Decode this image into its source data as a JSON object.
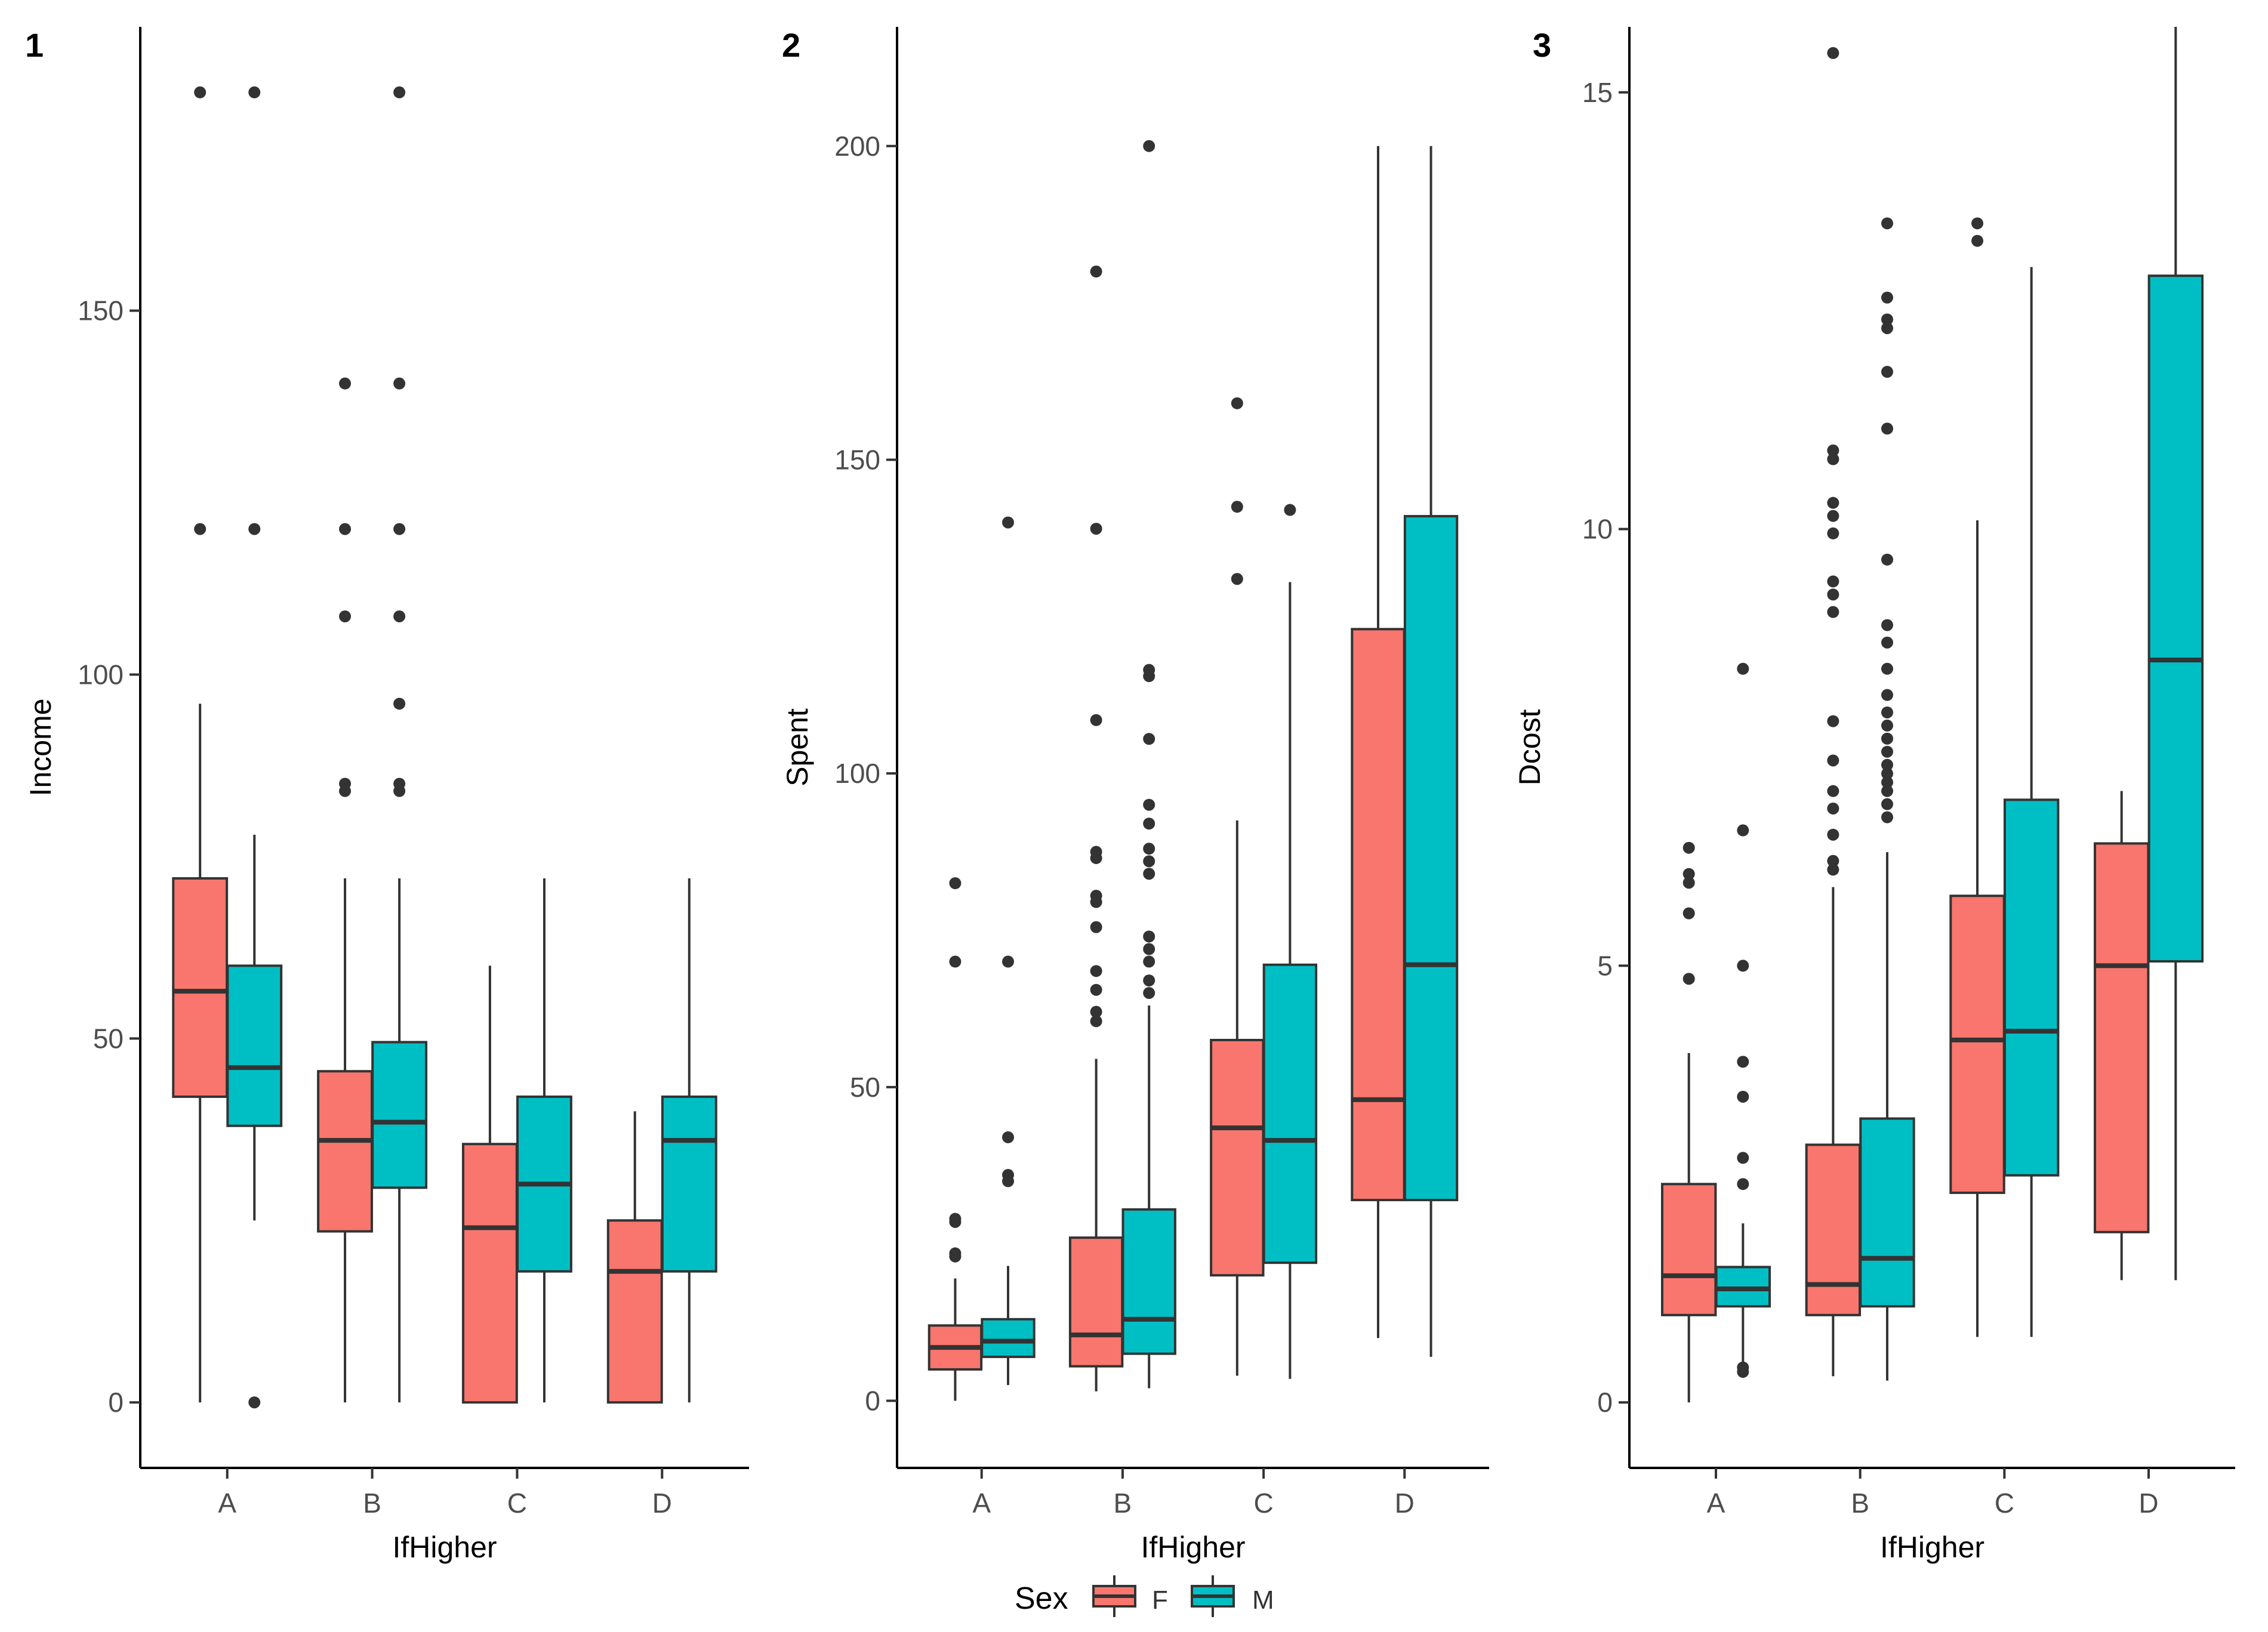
{
  "legend": {
    "title": "Sex",
    "items": [
      {
        "label": "F",
        "color": "#F8766D"
      },
      {
        "label": "M",
        "color": "#00BFC4"
      }
    ]
  },
  "chart_data": [
    {
      "type": "boxplot",
      "panel_label": "1",
      "xlabel": "IfHigher",
      "ylabel": "Income",
      "categories": [
        "A",
        "B",
        "C",
        "D"
      ],
      "ylim": [
        -9,
        189
      ],
      "yticks": [
        0,
        50,
        100,
        150
      ],
      "yticklabels": [
        "0",
        "50",
        "100",
        "150"
      ],
      "series": [
        {
          "name": "F",
          "color": "#F8766D",
          "boxes": [
            {
              "whislo": 0,
              "q1": 42,
              "med": 56.5,
              "q3": 72,
              "whishi": 96,
              "fliers": [
                120,
                180
              ]
            },
            {
              "whislo": 0,
              "q1": 23.5,
              "med": 36,
              "q3": 45.5,
              "whishi": 72,
              "fliers": [
                84,
                85,
                108,
                120,
                140
              ]
            },
            {
              "whislo": 0,
              "q1": 0,
              "med": 24,
              "q3": 35.5,
              "whishi": 60,
              "fliers": []
            },
            {
              "whislo": 0,
              "q1": 0,
              "med": 18,
              "q3": 25,
              "whishi": 40,
              "fliers": []
            }
          ]
        },
        {
          "name": "M",
          "color": "#00BFC4",
          "boxes": [
            {
              "whislo": 25,
              "q1": 38,
              "med": 46,
              "q3": 60,
              "whishi": 78,
              "fliers": [
                0,
                120,
                180
              ]
            },
            {
              "whislo": 0,
              "q1": 29.5,
              "med": 38.5,
              "q3": 49.5,
              "whishi": 72,
              "fliers": [
                84,
                85,
                96,
                108,
                120,
                140,
                180
              ]
            },
            {
              "whislo": 0,
              "q1": 18,
              "med": 30,
              "q3": 42,
              "whishi": 72,
              "fliers": []
            },
            {
              "whislo": 0,
              "q1": 18,
              "med": 36,
              "q3": 42,
              "whishi": 72,
              "fliers": []
            }
          ]
        }
      ]
    },
    {
      "type": "boxplot",
      "panel_label": "2",
      "xlabel": "IfHigher",
      "ylabel": "Spent",
      "categories": [
        "A",
        "B",
        "C",
        "D"
      ],
      "ylim": [
        -10.7,
        219
      ],
      "yticks": [
        0,
        50,
        100,
        150,
        200
      ],
      "yticklabels": [
        "0",
        "50",
        "100",
        "150",
        "200"
      ],
      "series": [
        {
          "name": "F",
          "color": "#F8766D",
          "boxes": [
            {
              "whislo": 0,
              "q1": 5,
              "med": 8.5,
              "q3": 12,
              "whishi": 19.5,
              "fliers": [
                23,
                23.5,
                28.5,
                29,
                70,
                82.5
              ]
            },
            {
              "whislo": 1.5,
              "q1": 5.5,
              "med": 10.5,
              "q3": 26,
              "whishi": 54.5,
              "fliers": [
                60.5,
                62,
                65.5,
                68.5,
                75.5,
                79.5,
                80.5,
                86.5,
                87.5,
                108.5,
                139,
                180
              ]
            },
            {
              "whislo": 4,
              "q1": 20,
              "med": 43.5,
              "q3": 57.5,
              "whishi": 92.5,
              "fliers": [
                131,
                142.5,
                159
              ]
            },
            {
              "whislo": 10,
              "q1": 32,
              "med": 48,
              "q3": 123,
              "whishi": 200,
              "fliers": []
            }
          ]
        },
        {
          "name": "M",
          "color": "#00BFC4",
          "boxes": [
            {
              "whislo": 2.5,
              "q1": 7,
              "med": 9.5,
              "q3": 13,
              "whishi": 21.5,
              "fliers": [
                35,
                36,
                42,
                70,
                140
              ]
            },
            {
              "whislo": 2,
              "q1": 7.5,
              "med": 13,
              "q3": 30.5,
              "whishi": 63,
              "fliers": [
                65,
                67,
                70,
                72,
                74,
                84,
                86,
                88,
                92,
                95,
                105.5,
                115.5,
                116.5,
                200
              ]
            },
            {
              "whislo": 3.5,
              "q1": 22,
              "med": 41.5,
              "q3": 69.5,
              "whishi": 130.5,
              "fliers": [
                142
              ]
            },
            {
              "whislo": 7,
              "q1": 32,
              "med": 69.5,
              "q3": 141,
              "whishi": 200,
              "fliers": []
            }
          ]
        }
      ]
    },
    {
      "type": "boxplot",
      "panel_label": "3",
      "xlabel": "IfHigher",
      "ylabel": "Dcost",
      "categories": [
        "A",
        "B",
        "C",
        "D"
      ],
      "ylim": [
        -0.75,
        15.75
      ],
      "yticks": [
        0,
        5,
        10,
        15
      ],
      "yticklabels": [
        "0",
        "5",
        "10",
        "15"
      ],
      "series": [
        {
          "name": "F",
          "color": "#F8766D",
          "boxes": [
            {
              "whislo": 0,
              "q1": 1,
              "med": 1.45,
              "q3": 2.5,
              "whishi": 4,
              "fliers": [
                4.85,
                5.6,
                5.95,
                6.05,
                6.35
              ]
            },
            {
              "whislo": 0.3,
              "q1": 1,
              "med": 1.35,
              "q3": 2.95,
              "whishi": 5.9,
              "fliers": [
                6.1,
                6.2,
                6.5,
                6.8,
                7,
                7.35,
                7.8,
                9.05,
                9.25,
                9.4,
                9.95,
                10.15,
                10.3,
                10.8,
                10.9,
                15.45
              ]
            },
            {
              "whislo": 0.75,
              "q1": 2.4,
              "med": 4.15,
              "q3": 5.8,
              "whishi": 10.1,
              "fliers": [
                13.3,
                13.5
              ]
            },
            {
              "whislo": 1.4,
              "q1": 1.95,
              "med": 5,
              "q3": 6.4,
              "whishi": 7,
              "fliers": []
            }
          ]
        },
        {
          "name": "M",
          "color": "#00BFC4",
          "boxes": [
            {
              "whislo": 0.4,
              "q1": 1.1,
              "med": 1.3,
              "q3": 1.55,
              "whishi": 2.05,
              "fliers": [
                0.35,
                0.4,
                2.5,
                2.8,
                3.5,
                3.9,
                5,
                6.55,
                8.4
              ]
            },
            {
              "whislo": 0.25,
              "q1": 1.1,
              "med": 1.65,
              "q3": 3.25,
              "whishi": 6.3,
              "fliers": [
                6.7,
                6.85,
                7,
                7.1,
                7.2,
                7.3,
                7.45,
                7.6,
                7.75,
                7.9,
                8.1,
                8.4,
                8.7,
                8.9,
                9.65,
                11.15,
                11.8,
                12.3,
                12.4,
                12.65,
                13.5
              ]
            },
            {
              "whislo": 0.75,
              "q1": 2.6,
              "med": 4.25,
              "q3": 6.9,
              "whishi": 13,
              "fliers": []
            },
            {
              "whislo": 1.4,
              "q1": 5.05,
              "med": 8.5,
              "q3": 12.9,
              "whishi": 15.75,
              "fliers": []
            }
          ]
        }
      ]
    }
  ]
}
